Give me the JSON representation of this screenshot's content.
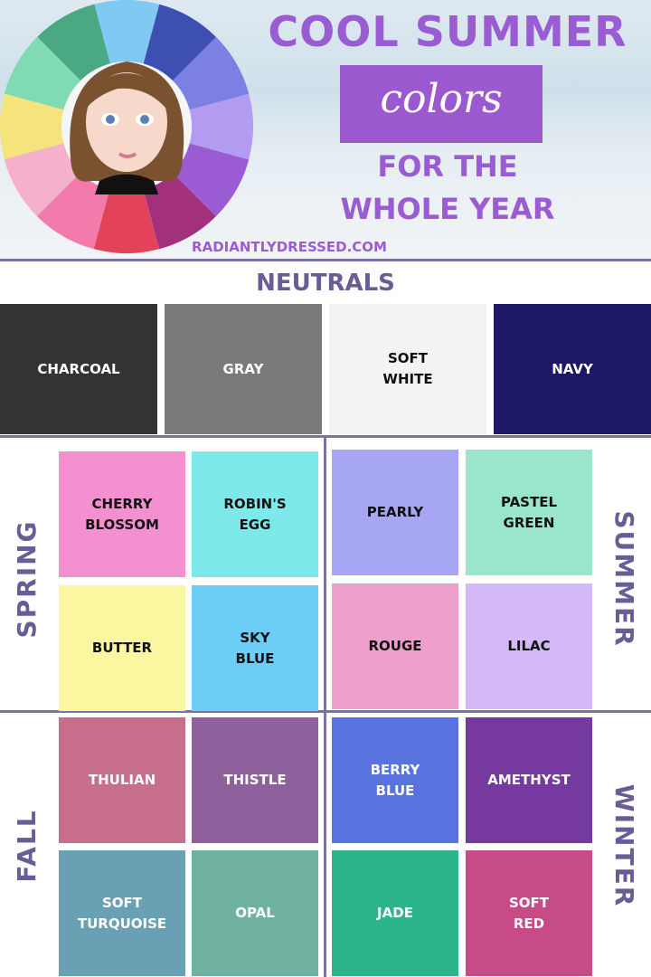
{
  "header": {
    "title": "COOL SUMMER",
    "subtitle": "colors",
    "tagline_lines": [
      "FOR THE",
      "WHOLE YEAR"
    ],
    "website": "RADIANTLYDRESSED.COM"
  },
  "neutrals": {
    "title": "NEUTRALS",
    "swatches": [
      {
        "lines": [
          "CHARCOAL"
        ],
        "color": "#333333"
      },
      {
        "lines": [
          "GRAY"
        ],
        "color": "#7a7a7a"
      },
      {
        "lines": [
          "SOFT",
          "WHITE"
        ],
        "color": "#f3f3f3"
      },
      {
        "lines": [
          "NAVY"
        ],
        "color": "#1c1766"
      }
    ]
  },
  "seasons": [
    {
      "name": "SPRING",
      "swatches": [
        {
          "lines": [
            "CHERRY",
            "BLOSSOM"
          ],
          "color": "#f490d0"
        },
        {
          "lines": [
            "ROBIN'S",
            "EGG"
          ],
          "color": "#7ee9ea"
        },
        {
          "lines": [
            "BUTTER"
          ],
          "color": "#fbf7a0"
        },
        {
          "lines": [
            "SKY",
            "BLUE"
          ],
          "color": "#6ccdf7"
        }
      ]
    },
    {
      "name": "SUMMER",
      "swatches": [
        {
          "lines": [
            "PEARLY"
          ],
          "color": "#a7a6f5"
        },
        {
          "lines": [
            "PASTEL",
            "GREEN"
          ],
          "color": "#99e6cd"
        },
        {
          "lines": [
            "ROUGE"
          ],
          "color": "#eca0cb"
        },
        {
          "lines": [
            "LILAC"
          ],
          "color": "#d3b9f5"
        }
      ]
    },
    {
      "name": "FALL",
      "swatches": [
        {
          "lines": [
            "THULIAN"
          ],
          "color": "#c66e8a"
        },
        {
          "lines": [
            "THISTLE"
          ],
          "color": "#8e619d"
        },
        {
          "lines": [
            "SOFT",
            "TURQUOISE"
          ],
          "color": "#6aa0b4"
        },
        {
          "lines": [
            "OPAL"
          ],
          "color": "#6fb2a2"
        }
      ]
    },
    {
      "name": "WINTER",
      "swatches": [
        {
          "lines": [
            "BERRY",
            "BLUE"
          ],
          "color": "#5873de"
        },
        {
          "lines": [
            "AMETHYST"
          ],
          "color": "#7639a0"
        },
        {
          "lines": [
            "JADE"
          ],
          "color": "#2cb58a"
        },
        {
          "lines": [
            "SOFT",
            "RED"
          ],
          "color": "#c64b86"
        }
      ]
    }
  ]
}
